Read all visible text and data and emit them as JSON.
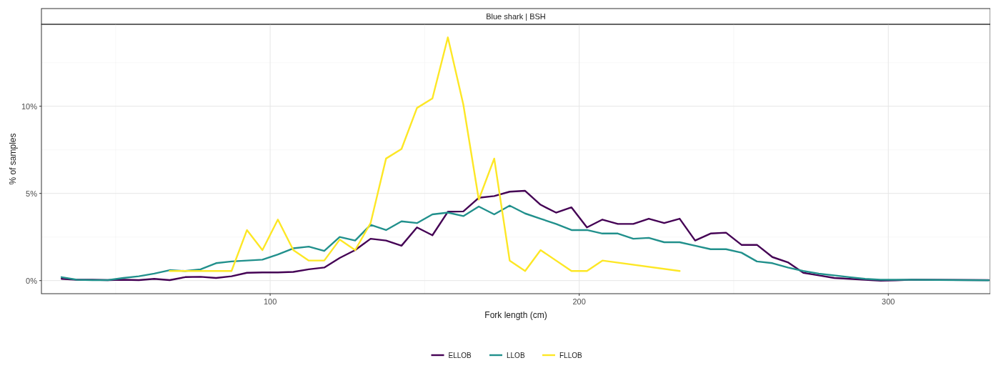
{
  "chart_data": {
    "type": "line",
    "title": "Blue shark | BSH",
    "xlabel": "Fork length (cm)",
    "ylabel": "% of samples",
    "xlim": [
      26,
      333
    ],
    "ylim": [
      -0.75,
      14.7
    ],
    "xticks": [
      100,
      200,
      300
    ],
    "yticks": [
      {
        "value": 0,
        "label": "0%"
      },
      {
        "value": 5,
        "label": "5%"
      },
      {
        "value": 10,
        "label": "10%"
      }
    ],
    "grid": true,
    "legend": "bottom",
    "line_style": "solid",
    "series": [
      {
        "name": "ELLOB",
        "color": "#440154",
        "x": [
          32.5,
          37.5,
          42.5,
          47.5,
          52.5,
          57.5,
          62.5,
          67.5,
          72.5,
          77.5,
          82.5,
          87.5,
          92.5,
          97.5,
          102.5,
          107.5,
          112.5,
          117.5,
          122.5,
          127.5,
          132.5,
          137.5,
          142.5,
          147.5,
          152.5,
          157.5,
          162.5,
          167.5,
          172.5,
          177.5,
          182.5,
          187.5,
          192.5,
          197.5,
          202.5,
          207.5,
          212.5,
          217.5,
          222.5,
          227.5,
          232.5,
          237.5,
          242.5,
          247.5,
          252.5,
          257.5,
          262.5,
          267.5,
          272.5,
          277.5,
          282.5,
          287.5,
          292.5,
          297.5,
          302.5,
          307.5,
          332.5
        ],
        "values": [
          0.1,
          0.05,
          0.05,
          0.03,
          0.05,
          0.03,
          0.1,
          0.03,
          0.2,
          0.22,
          0.15,
          0.25,
          0.45,
          0.47,
          0.47,
          0.5,
          0.65,
          0.75,
          1.3,
          1.75,
          2.4,
          2.3,
          2.0,
          3.05,
          2.6,
          3.95,
          3.97,
          4.75,
          4.85,
          5.1,
          5.15,
          4.35,
          3.9,
          4.2,
          3.05,
          3.5,
          3.25,
          3.25,
          3.55,
          3.3,
          3.55,
          2.3,
          2.7,
          2.75,
          2.05,
          2.05,
          1.35,
          1.05,
          0.45,
          0.3,
          0.15,
          0.1,
          0.05,
          0.0,
          0.02,
          0.05,
          0.03
        ]
      },
      {
        "name": "LLOB",
        "color": "#21908c",
        "x": [
          32.5,
          37.5,
          42.5,
          47.5,
          52.5,
          57.5,
          62.5,
          67.5,
          72.5,
          77.5,
          82.5,
          87.5,
          92.5,
          97.5,
          102.5,
          107.5,
          112.5,
          117.5,
          122.5,
          127.5,
          132.5,
          137.5,
          142.5,
          147.5,
          152.5,
          157.5,
          162.5,
          167.5,
          172.5,
          177.5,
          182.5,
          187.5,
          192.5,
          197.5,
          202.5,
          207.5,
          212.5,
          217.5,
          222.5,
          227.5,
          232.5,
          237.5,
          242.5,
          247.5,
          252.5,
          257.5,
          262.5,
          267.5,
          272.5,
          277.5,
          282.5,
          287.5,
          292.5,
          297.5,
          302.5,
          307.5,
          332.5
        ],
        "values": [
          0.2,
          0.05,
          0.03,
          0.03,
          0.15,
          0.25,
          0.4,
          0.6,
          0.55,
          0.65,
          1.0,
          1.1,
          1.15,
          1.2,
          1.5,
          1.85,
          1.95,
          1.7,
          2.5,
          2.3,
          3.2,
          2.9,
          3.4,
          3.3,
          3.8,
          3.9,
          3.7,
          4.25,
          3.8,
          4.3,
          3.85,
          3.55,
          3.25,
          2.9,
          2.9,
          2.7,
          2.7,
          2.4,
          2.45,
          2.2,
          2.2,
          2.0,
          1.8,
          1.8,
          1.6,
          1.1,
          1.0,
          0.75,
          0.55,
          0.4,
          0.3,
          0.2,
          0.1,
          0.05,
          0.05,
          0.05,
          0.02
        ]
      },
      {
        "name": "FLLOB",
        "color": "#fde725",
        "x": [
          67.5,
          72.5,
          77.5,
          82.5,
          87.5,
          92.5,
          97.5,
          102.5,
          107.5,
          112.5,
          117.5,
          122.5,
          127.5,
          132.5,
          137.5,
          142.5,
          147.5,
          152.5,
          157.5,
          162.5,
          167.5,
          172.5,
          177.5,
          182.5,
          187.5,
          197.5,
          202.5,
          207.5,
          232.5
        ],
        "values": [
          0.55,
          0.55,
          0.55,
          0.55,
          0.55,
          2.9,
          1.75,
          3.5,
          1.75,
          1.15,
          1.15,
          2.35,
          1.75,
          3.3,
          7.0,
          7.55,
          9.9,
          10.45,
          13.95,
          10.1,
          4.65,
          7.0,
          1.15,
          0.55,
          1.75,
          0.55,
          0.55,
          1.15,
          0.55
        ]
      }
    ]
  }
}
